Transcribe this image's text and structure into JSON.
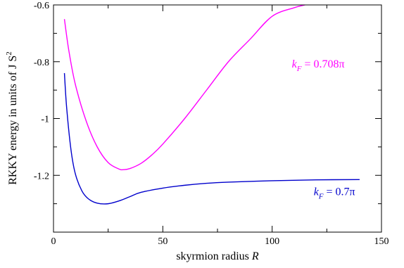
{
  "chart_data": {
    "type": "line",
    "title": "",
    "xlabel": "skyrmion radius",
    "xlabel_var": "R",
    "ylabel": "RKKY energy in units of J S",
    "ylabel_sup": "2",
    "xlim": [
      0,
      150
    ],
    "ylim": [
      -1.4,
      -0.6
    ],
    "x_ticks": [
      0,
      50,
      100,
      150
    ],
    "x_tick_labels": [
      "0",
      "50",
      "100",
      "150"
    ],
    "y_ticks": [
      -0.6,
      -0.8,
      -1.0,
      -1.2
    ],
    "y_tick_labels": [
      "-0.6",
      "-0.8",
      "-1",
      "-1.2"
    ],
    "grid": false,
    "legend": "none",
    "series": [
      {
        "name": "k_F = 0.708π",
        "label_var": "k",
        "label_sub": "F",
        "label_value": " = 0.708π",
        "color": "#ff00ff",
        "x": [
          5,
          7,
          10,
          15,
          20,
          25,
          30,
          32,
          35,
          40,
          45,
          50,
          60,
          70,
          80,
          90,
          100,
          110,
          115
        ],
        "y": [
          -0.65,
          -0.76,
          -0.88,
          -1.01,
          -1.1,
          -1.155,
          -1.178,
          -1.18,
          -1.176,
          -1.158,
          -1.128,
          -1.09,
          -1.0,
          -0.9,
          -0.8,
          -0.72,
          -0.64,
          -0.61,
          -0.6
        ]
      },
      {
        "name": "k_F = 0.7π",
        "label_var": "k",
        "label_sub": "F",
        "label_value": " = 0.7π",
        "color": "#0000cc",
        "x": [
          5,
          6,
          8,
          10,
          13,
          16,
          20,
          25,
          30,
          35,
          40,
          50,
          60,
          70,
          80,
          100,
          120,
          140
        ],
        "y": [
          -0.84,
          -0.96,
          -1.11,
          -1.195,
          -1.255,
          -1.283,
          -1.298,
          -1.3,
          -1.29,
          -1.275,
          -1.26,
          -1.245,
          -1.235,
          -1.228,
          -1.224,
          -1.219,
          -1.216,
          -1.215
        ]
      }
    ],
    "annotations": [
      {
        "series": 0,
        "anchor_x": 109,
        "anchor_y": -0.82
      },
      {
        "series": 1,
        "anchor_x": 119,
        "anchor_y": -1.27
      }
    ]
  }
}
